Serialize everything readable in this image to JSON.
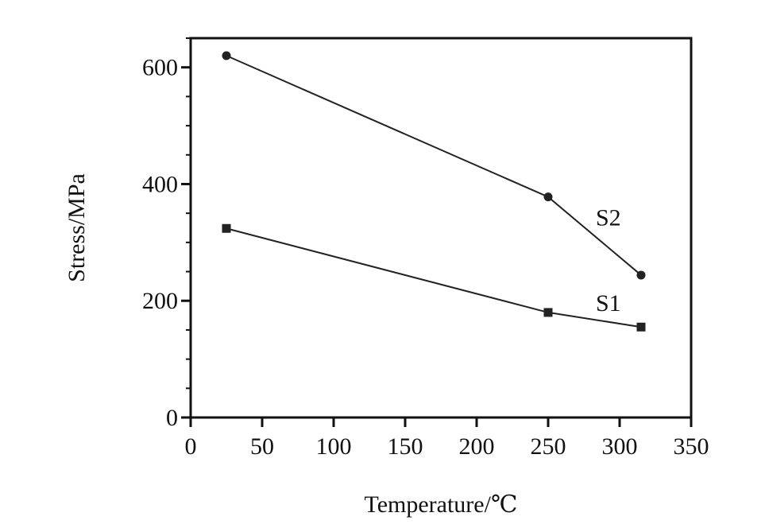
{
  "chart_data": {
    "type": "line",
    "xlabel": "Temperature/℃",
    "ylabel": "Stress/MPa",
    "xlim": [
      0,
      350
    ],
    "ylim": [
      0,
      650
    ],
    "xticks": [
      0,
      50,
      100,
      150,
      200,
      250,
      300,
      350
    ],
    "yticks": [
      0,
      200,
      400,
      600
    ],
    "grid": false,
    "series": [
      {
        "name": "S2",
        "marker": "circle",
        "x": [
          25,
          250,
          315
        ],
        "y": [
          620,
          378,
          244
        ]
      },
      {
        "name": "S1",
        "marker": "square",
        "x": [
          25,
          250,
          315
        ],
        "y": [
          324,
          180,
          155
        ]
      }
    ],
    "colors": {
      "line": "#222222",
      "axis": "#111111"
    }
  }
}
